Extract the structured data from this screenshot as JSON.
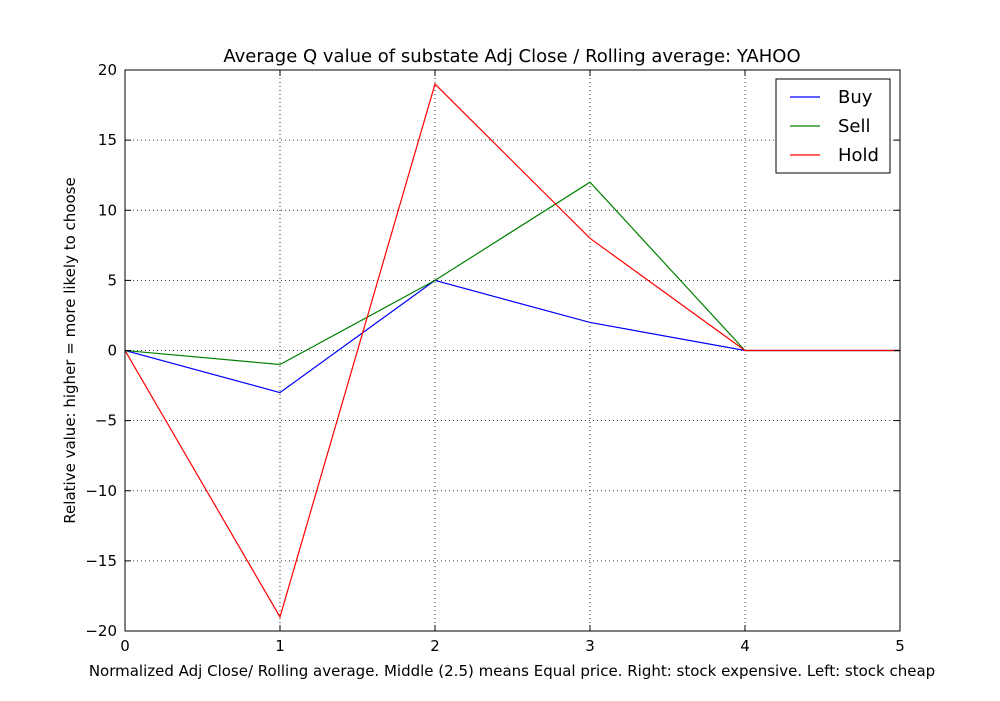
{
  "chart_data": {
    "type": "line",
    "title": "Average Q value of substate Adj Close / Rolling average: YAHOO",
    "xlabel": "Normalized Adj Close/ Rolling average. Middle (2.5) means Equal price. Right: stock expensive. Left: stock cheap",
    "ylabel": "Relative value: higher = more likely to choose",
    "x": [
      0,
      1,
      2,
      3,
      4,
      5
    ],
    "xlim": [
      0,
      5
    ],
    "ylim": [
      -20,
      20
    ],
    "xticks": [
      0,
      1,
      2,
      3,
      4,
      5
    ],
    "yticks": [
      -20,
      -15,
      -10,
      -5,
      0,
      5,
      10,
      15,
      20
    ],
    "ytick_labels": [
      "−20",
      "−15",
      "−10",
      "−5",
      "0",
      "5",
      "10",
      "15",
      "20"
    ],
    "grid": true,
    "legend_position": "top-right",
    "series": [
      {
        "name": "Buy",
        "color": "#0000ff",
        "values": [
          0,
          -3,
          5,
          2,
          0,
          0
        ]
      },
      {
        "name": "Sell",
        "color": "#008000",
        "values": [
          0,
          -1,
          5,
          12,
          0,
          0
        ]
      },
      {
        "name": "Hold",
        "color": "#ff0000",
        "values": [
          0,
          -19,
          19,
          8,
          0,
          0
        ]
      }
    ]
  }
}
